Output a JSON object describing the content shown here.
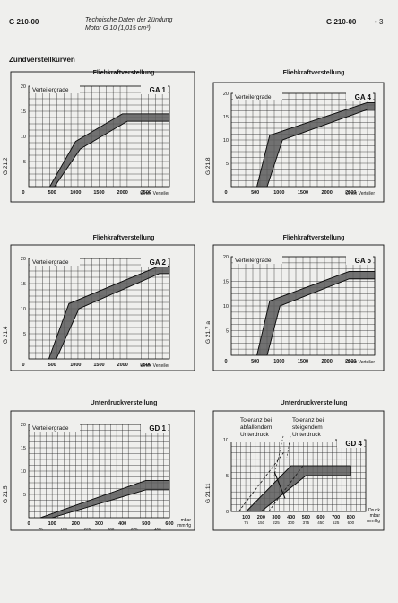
{
  "header": {
    "code_left": "G 210-00",
    "title_line1": "Technische Daten der Zündung",
    "title_line2": "Motor G 10 (1,015 cm³)",
    "code_right": "G 210-00",
    "page": "• 3"
  },
  "section_title": "Zündverstellkurven",
  "charts": [
    {
      "title": "Fliehkraftverstellung",
      "id": "GA 1",
      "ylabel": "Verteilergrade",
      "xunit": "U/min Verteiler",
      "side_code": "G 21.2",
      "yticks": [
        "20",
        "15",
        "10",
        "5"
      ],
      "xticks": [
        "0",
        "500",
        "1000",
        "1500",
        "2000",
        "2500"
      ]
    },
    {
      "title": "Fliehkraftverstellung",
      "id": "GA 4",
      "ylabel": "Verteilergrade",
      "xunit": "U/min Verteiler",
      "side_code": "G 21.8",
      "yticks": [
        "20",
        "15",
        "10",
        "5"
      ],
      "xticks": [
        "0",
        "500",
        "1000",
        "1500",
        "2000",
        "2500"
      ]
    },
    {
      "title": "Fliehkraftverstellung",
      "id": "GA 2",
      "ylabel": "Verteilergrade",
      "xunit": "U/min Verteiler",
      "side_code": "G 21.4",
      "yticks": [
        "20",
        "15",
        "10",
        "5"
      ],
      "xticks": [
        "0",
        "500",
        "1000",
        "1500",
        "2000",
        "2500"
      ]
    },
    {
      "title": "Fliehkraftverstellung",
      "id": "GA 5",
      "ylabel": "Verteilergrade",
      "xunit": "U/min Verteiler",
      "side_code": "G 21.7 a",
      "yticks": [
        "20",
        "15",
        "10",
        "5"
      ],
      "xticks": [
        "0",
        "500",
        "1000",
        "1500",
        "2000",
        "2500"
      ]
    },
    {
      "title": "Unterdruckverstellung",
      "id": "GD 1",
      "ylabel": "Verteilergrade",
      "xunit": "mbar",
      "xunit2": "mmHg",
      "side_code": "G 21.5",
      "yticks": [
        "20",
        "15",
        "10",
        "5"
      ],
      "xticks": [
        "0",
        "100",
        "200",
        "300",
        "400",
        "500",
        "600"
      ],
      "xticks2": [
        "75",
        "150",
        "225",
        "300",
        "375",
        "450"
      ]
    },
    {
      "title": "Unterdruckverstellung",
      "id": "GD 4",
      "ylabel": "",
      "xunit": "mbar",
      "xunit2": "mmHg",
      "xunit_top": "Druck",
      "side_code": "G 21.11",
      "yticks": [
        "10",
        "5",
        "0"
      ],
      "xticks": [
        "100",
        "200",
        "300",
        "400",
        "500",
        "600",
        "700",
        "800"
      ],
      "xticks2": [
        "75",
        "150",
        "225",
        "300",
        "375",
        "450",
        "525",
        "600"
      ],
      "note_left": [
        "Toleranz bei",
        "abfallendem",
        "Unterdruck"
      ],
      "note_right": [
        "Toleranz bei",
        "steigendem",
        "Unterdruck"
      ]
    }
  ],
  "chart_data": [
    {
      "type": "area",
      "title": "Fliehkraftverstellung",
      "id": "GA 1",
      "xlabel": "U/min Verteiler",
      "ylabel": "Verteilergrade",
      "xlim": [
        0,
        3000
      ],
      "ylim": [
        0,
        20
      ],
      "series": [
        {
          "name": "upper",
          "x": [
            450,
            1000,
            2000,
            3000
          ],
          "y": [
            0,
            9,
            14.5,
            14.5
          ]
        },
        {
          "name": "lower",
          "x": [
            550,
            1100,
            2100,
            3000
          ],
          "y": [
            0,
            7.5,
            13,
            13
          ]
        }
      ]
    },
    {
      "type": "area",
      "title": "Fliehkraftverstellung",
      "id": "GA 4",
      "xlabel": "U/min Verteiler",
      "ylabel": "Verteilergrade",
      "xlim": [
        0,
        2800
      ],
      "ylim": [
        0,
        20
      ],
      "series": [
        {
          "name": "upper",
          "x": [
            500,
            750,
            2650,
            2800
          ],
          "y": [
            0,
            11,
            18,
            18
          ]
        },
        {
          "name": "lower",
          "x": [
            700,
            1000,
            2650,
            2800
          ],
          "y": [
            0,
            10,
            16.5,
            16.5
          ]
        }
      ]
    },
    {
      "type": "area",
      "title": "Fliehkraftverstellung",
      "id": "GA 2",
      "xlabel": "U/min Verteiler",
      "ylabel": "Verteilergrade",
      "xlim": [
        0,
        2800
      ],
      "ylim": [
        0,
        20
      ],
      "series": [
        {
          "name": "upper",
          "x": [
            400,
            800,
            2600,
            2800
          ],
          "y": [
            0,
            11,
            18.5,
            18.5
          ]
        },
        {
          "name": "lower",
          "x": [
            550,
            1000,
            2600,
            2800
          ],
          "y": [
            0,
            10,
            17,
            17
          ]
        }
      ]
    },
    {
      "type": "area",
      "title": "Fliehkraftverstellung",
      "id": "GA 5",
      "xlabel": "U/min Verteiler",
      "ylabel": "Verteilergrade",
      "xlim": [
        0,
        2800
      ],
      "ylim": [
        0,
        20
      ],
      "series": [
        {
          "name": "upper",
          "x": [
            500,
            750,
            2300,
            2800
          ],
          "y": [
            0,
            11,
            17,
            17
          ]
        },
        {
          "name": "lower",
          "x": [
            700,
            950,
            2300,
            2800
          ],
          "y": [
            0,
            10,
            15.5,
            15.5
          ]
        }
      ]
    },
    {
      "type": "area",
      "title": "Unterdruckverstellung",
      "id": "GD 1",
      "xlabel": "mbar",
      "ylabel": "Verteilergrade",
      "xlim": [
        0,
        600
      ],
      "ylim": [
        0,
        20
      ],
      "series": [
        {
          "name": "upper",
          "x": [
            50,
            500,
            600
          ],
          "y": [
            0,
            8,
            8
          ]
        },
        {
          "name": "lower",
          "x": [
            100,
            500,
            600
          ],
          "y": [
            0,
            6,
            6
          ]
        }
      ]
    },
    {
      "type": "area",
      "title": "Unterdruckverstellung",
      "id": "GD 4",
      "xlabel": "mbar",
      "ylabel": "",
      "xlim": [
        0,
        900
      ],
      "ylim": [
        0,
        11
      ],
      "series": [
        {
          "name": "upper",
          "x": [
            100,
            400,
            800
          ],
          "y": [
            0,
            7,
            7
          ]
        },
        {
          "name": "lower",
          "x": [
            200,
            500,
            800
          ],
          "y": [
            0,
            5.5,
            5.5
          ]
        }
      ]
    }
  ]
}
